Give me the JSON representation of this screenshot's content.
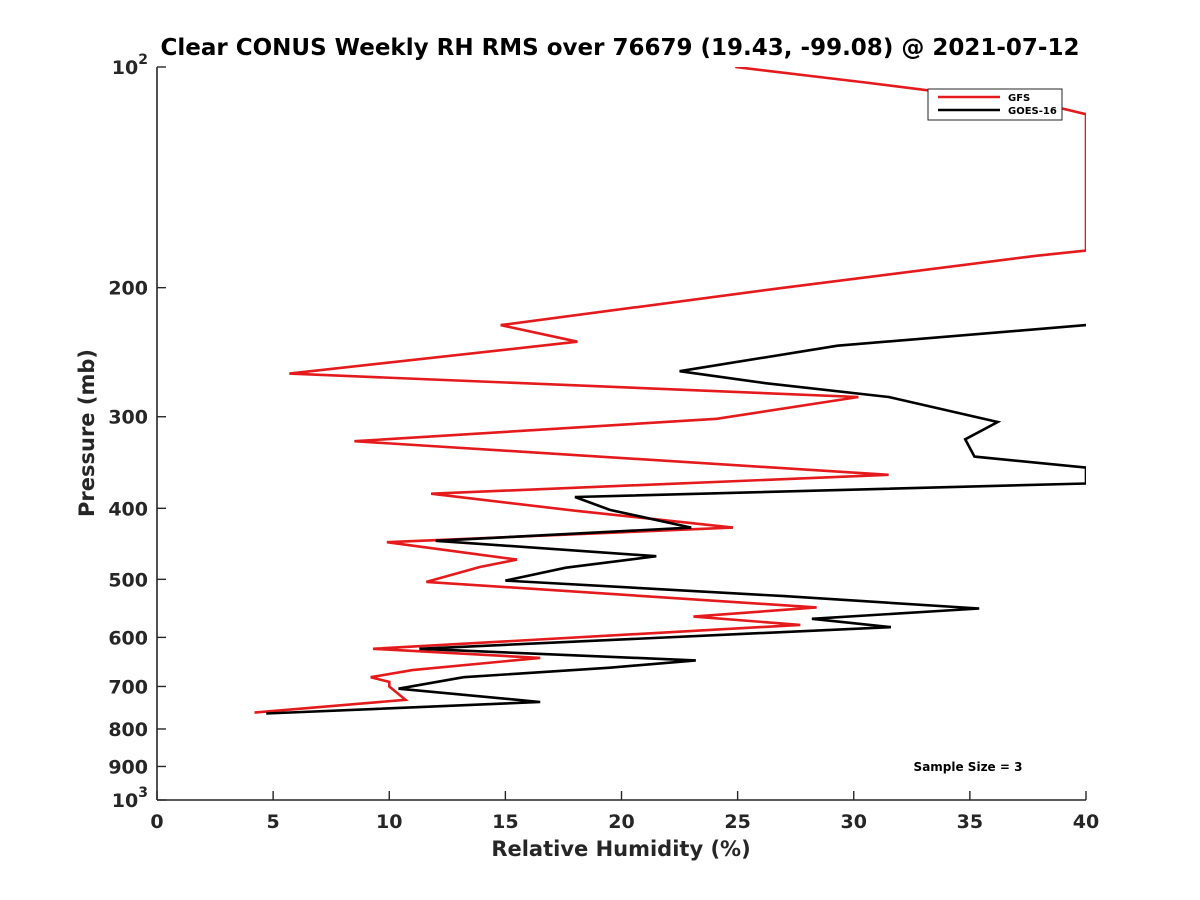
{
  "chart_data": {
    "type": "line",
    "title": "Clear CONUS Weekly RH RMS over 76679 (19.43, -99.08) @ 2021-07-12",
    "xlabel": "Relative Humidity (%)",
    "ylabel": "Pressure (mb)",
    "xlim": [
      0,
      40
    ],
    "ylim": [
      100,
      1000
    ],
    "yscale": "log",
    "y_reversed": true,
    "xticks": [
      0,
      5,
      10,
      15,
      20,
      25,
      30,
      35,
      40
    ],
    "yticks": [
      {
        "value": 100,
        "base": "10",
        "exp": "2"
      },
      {
        "value": 200,
        "label": "200"
      },
      {
        "value": 300,
        "label": "300"
      },
      {
        "value": 400,
        "label": "400"
      },
      {
        "value": 500,
        "label": "500"
      },
      {
        "value": 600,
        "label": "600"
      },
      {
        "value": 700,
        "label": "700"
      },
      {
        "value": 800,
        "label": "800"
      },
      {
        "value": 900,
        "label": "900"
      },
      {
        "value": 1000,
        "base": "10",
        "exp": "3"
      }
    ],
    "grid": false,
    "legend_position": "top-right",
    "annotation": "Sample Size = 3",
    "series": [
      {
        "name": "GFS",
        "color": "#e41a1c",
        "x": [
          24.9,
          30.5,
          38.5,
          40.0,
          40.0,
          37.8,
          27.0,
          14.8,
          18.1,
          5.7,
          30.2,
          24.1,
          8.5,
          31.5,
          11.8,
          18.0,
          24.8,
          9.9,
          15.5,
          13.9,
          11.6,
          28.4,
          23.1,
          27.7,
          9.3,
          16.5,
          11.0,
          9.2,
          10.0,
          10.0,
          10.7,
          4.2
        ],
        "y": [
          100,
          105,
          113,
          116,
          178,
          181,
          200,
          225,
          237,
          262,
          282,
          302,
          324,
          360,
          382,
          403,
          425,
          445,
          470,
          481,
          504,
          546,
          562,
          577,
          622,
          640,
          665,
          680,
          690,
          700,
          730,
          760
        ]
      },
      {
        "name": "GOES-16",
        "color": "#000000",
        "x": [
          40.0,
          29.3,
          22.5,
          26.2,
          31.5,
          36.2,
          34.8,
          35.2,
          40.0,
          40.0,
          18.0,
          19.5,
          23.0,
          12.0,
          21.5,
          17.6,
          15.0,
          27.0,
          35.4,
          28.2,
          31.6,
          11.3,
          23.2,
          19.5,
          13.2,
          10.4,
          16.5,
          4.7
        ],
        "y": [
          225,
          240,
          260,
          270,
          282,
          305,
          322,
          340,
          352,
          370,
          386,
          402,
          425,
          443,
          465,
          482,
          502,
          527,
          548,
          566,
          581,
          622,
          645,
          660,
          680,
          705,
          735,
          762
        ]
      }
    ]
  }
}
